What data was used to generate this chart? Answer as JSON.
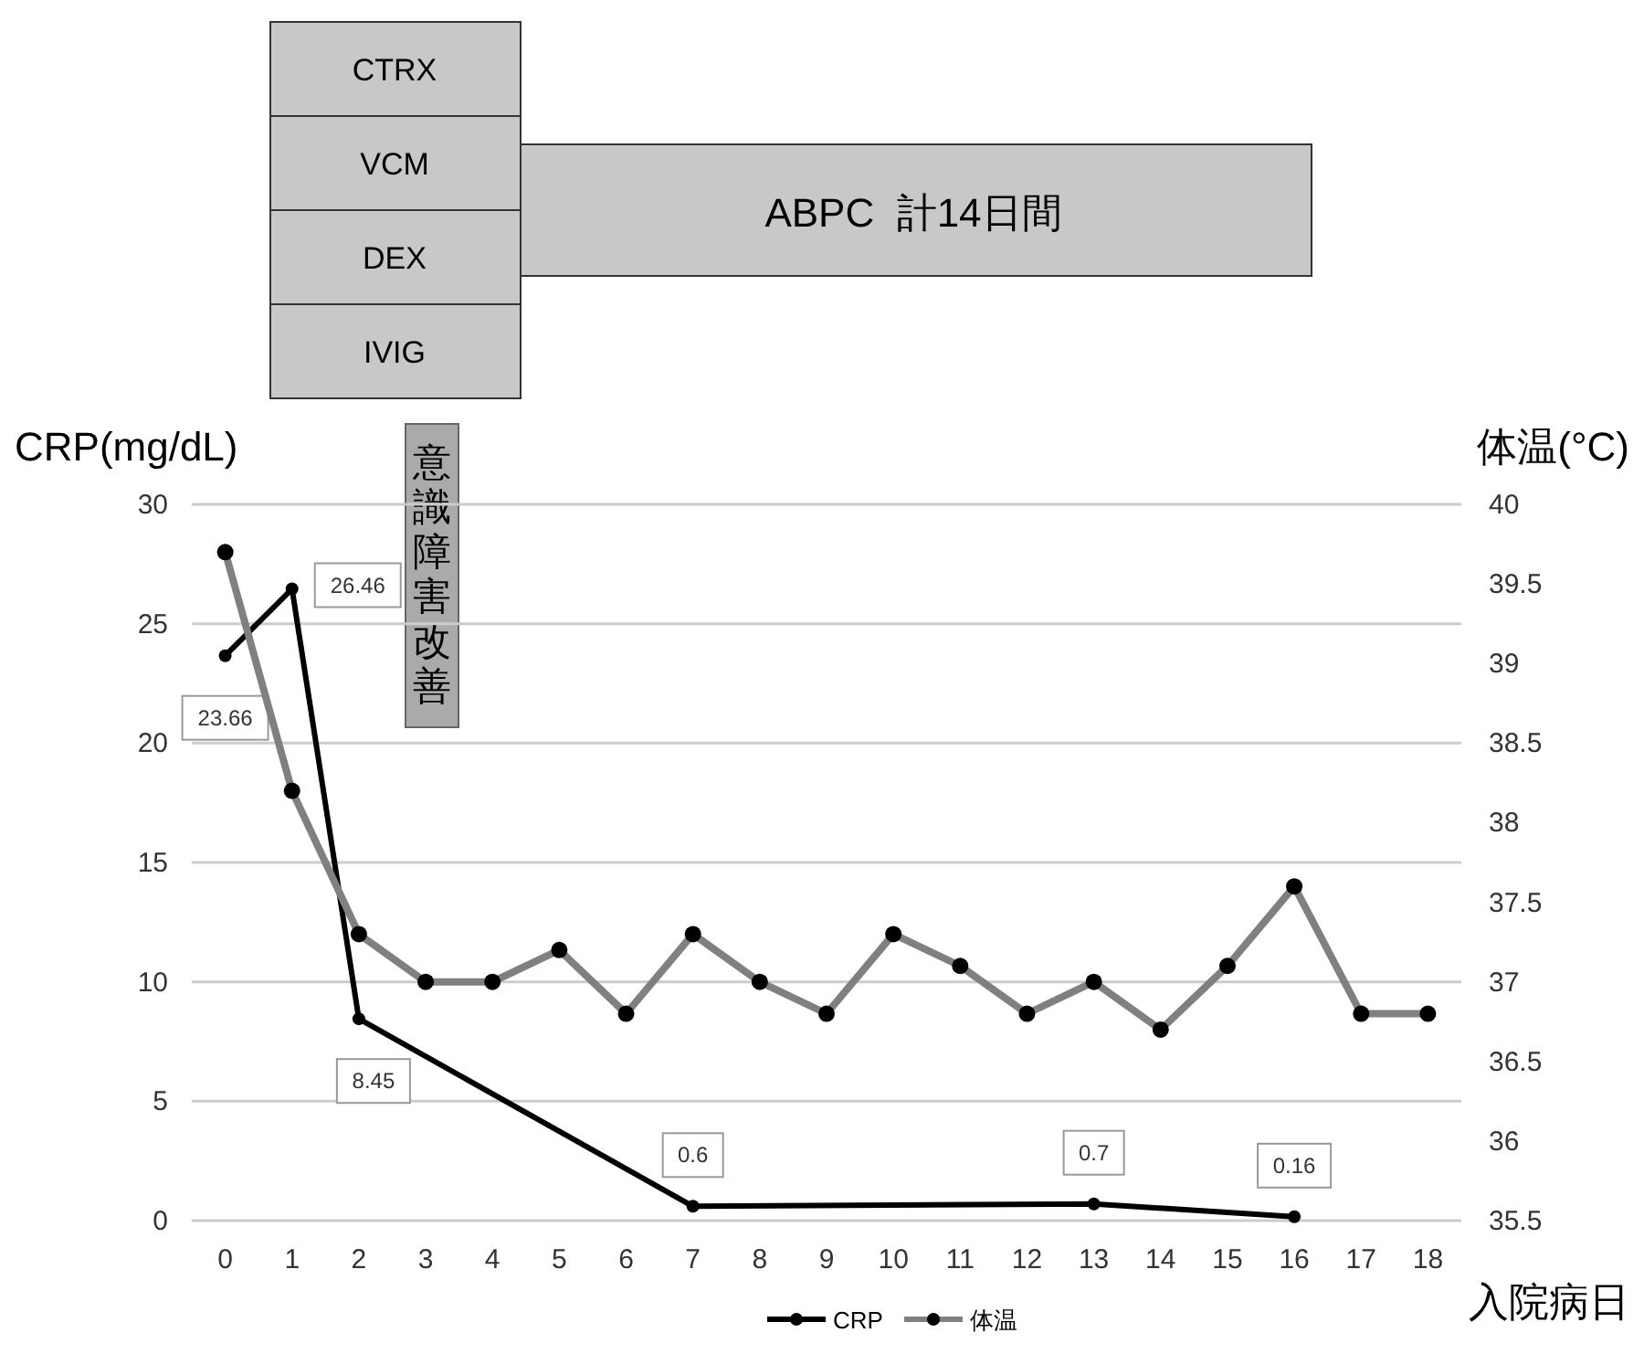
{
  "chart_data": {
    "type": "line",
    "xlabel": "入院病日",
    "ylabel": "CRP(mg/dL)",
    "y2label": "体温(°C)",
    "xlim": [
      -0.5,
      18.5
    ],
    "xticks": [
      0,
      1,
      2,
      3,
      4,
      5,
      6,
      7,
      8,
      9,
      10,
      11,
      12,
      13,
      14,
      15,
      16,
      17,
      18
    ],
    "ylim": [
      0,
      30
    ],
    "yticks": [
      0,
      5,
      10,
      15,
      20,
      25,
      30
    ],
    "y2lim": [
      35.5,
      40
    ],
    "y2ticks": [
      35.5,
      36,
      36.5,
      37,
      37.5,
      38,
      38.5,
      39,
      39.5,
      40
    ],
    "grid": "y",
    "legend": "bottom",
    "marker": "circle",
    "annotations": [
      "CTRX",
      "VCM",
      "DEX",
      "IVIG",
      "ABPC  計14日間",
      "意識障害改善"
    ],
    "series": [
      {
        "name": "CRP",
        "color": "#000000",
        "x": [
          0,
          1,
          2,
          7,
          13,
          16
        ],
        "values": [
          23.66,
          26.46,
          8.45,
          0.6,
          0.7,
          0.16
        ],
        "value_labels": [
          "23.66",
          "26.46",
          "8.45",
          "0.6",
          "0.7",
          "0.16"
        ]
      },
      {
        "name": "体温",
        "color": "#808080",
        "axis": "y2",
        "x": [
          0,
          1,
          2,
          3,
          4,
          5,
          6,
          7,
          8,
          9,
          10,
          11,
          12,
          13,
          14,
          15,
          16,
          17,
          18
        ],
        "values": [
          39.7,
          38.2,
          37.3,
          37.0,
          37.0,
          37.2,
          36.8,
          37.3,
          37.0,
          36.8,
          37.3,
          37.1,
          36.8,
          37.0,
          36.7,
          37.1,
          37.6,
          36.8,
          36.8
        ]
      }
    ]
  }
}
